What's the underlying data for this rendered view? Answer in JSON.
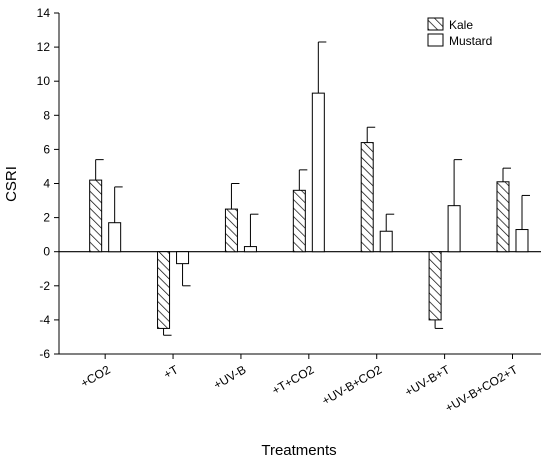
{
  "chart_data": {
    "type": "bar",
    "xlabel": "Treatments",
    "ylabel": "CSRI",
    "ylim": [
      -6,
      14
    ],
    "yticks": [
      -6,
      -4,
      -2,
      0,
      2,
      4,
      6,
      8,
      10,
      12,
      14
    ],
    "categories": [
      "+CO2",
      "+T",
      "+UV-B",
      "+T+CO2",
      "+UV-B+CO2",
      "+UV-B+T",
      "+UV-B+CO2+T"
    ],
    "series": [
      {
        "name": "Kale",
        "fill": "hatched",
        "values": [
          4.2,
          -4.5,
          2.5,
          3.6,
          6.4,
          -4.0,
          4.1
        ],
        "errors": [
          1.2,
          0.4,
          1.5,
          1.2,
          0.9,
          0.5,
          0.8
        ]
      },
      {
        "name": "Mustard",
        "fill": "white",
        "values": [
          1.7,
          -0.7,
          0.3,
          9.3,
          1.2,
          2.7,
          1.3
        ],
        "errors": [
          2.1,
          1.3,
          1.9,
          3.0,
          1.0,
          2.7,
          2.0
        ]
      }
    ],
    "legend_position": "top-right",
    "grid": false,
    "zero_line": true
  }
}
